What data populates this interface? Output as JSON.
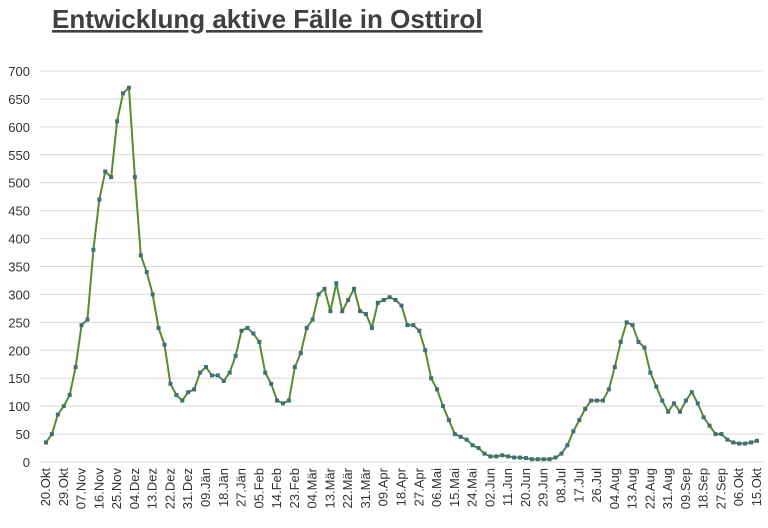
{
  "chart_data": {
    "type": "line",
    "title": "Entwicklung aktive Fälle in Osttirol",
    "categories": [
      "20.Okt",
      null,
      null,
      "29.Okt",
      null,
      null,
      "07.Nov",
      null,
      null,
      "16.Nov",
      null,
      null,
      "25.Nov",
      null,
      null,
      "04.Dez",
      null,
      null,
      "13.Dez",
      null,
      null,
      "22.Dez",
      null,
      null,
      "31.Dez",
      null,
      null,
      "09.Jän",
      null,
      null,
      "18.Jän",
      null,
      null,
      "27.Jän",
      null,
      null,
      "05.Feb",
      null,
      null,
      "14.Feb",
      null,
      null,
      "23.Feb",
      null,
      null,
      "04.Mär",
      null,
      null,
      "13.Mär",
      null,
      null,
      "22.Mär",
      null,
      null,
      "31.Mär",
      null,
      null,
      "09.Apr",
      null,
      null,
      "18.Apr",
      null,
      null,
      "27.Apr",
      null,
      null,
      "06.Mai",
      null,
      null,
      "15.Mai",
      null,
      null,
      "24.Mai",
      null,
      null,
      "02.Jun",
      null,
      null,
      "11.Jun",
      null,
      null,
      "20.Jun",
      null,
      null,
      "29.Jun",
      null,
      null,
      "08.Jul",
      null,
      null,
      "17.Jul",
      null,
      null,
      "26.Jul",
      null,
      null,
      "04.Aug",
      null,
      null,
      "13.Aug",
      null,
      null,
      "22.Aug",
      null,
      null,
      "31.Aug",
      null,
      null,
      "09.Sep",
      null,
      null,
      "18.Sep",
      null,
      null,
      "27.Sep",
      null,
      null,
      "06.Okt",
      null,
      null,
      "15.Okt"
    ],
    "series": [
      {
        "color": "#5a8a30",
        "marker_color": "#3f6f7a",
        "values": [
          35,
          50,
          85,
          100,
          120,
          170,
          245,
          255,
          380,
          470,
          520,
          510,
          610,
          660,
          670,
          510,
          370,
          340,
          300,
          240,
          210,
          140,
          120,
          110,
          125,
          130,
          160,
          170,
          155,
          155,
          145,
          160,
          190,
          235,
          240,
          230,
          215,
          160,
          140,
          110,
          105,
          110,
          170,
          195,
          240,
          255,
          300,
          310,
          270,
          320,
          270,
          290,
          310,
          270,
          265,
          240,
          285,
          290,
          295,
          290,
          280,
          245,
          245,
          235,
          200,
          150,
          130,
          100,
          75,
          50,
          45,
          40,
          30,
          25,
          15,
          10,
          10,
          12,
          10,
          8,
          8,
          7,
          5,
          5,
          5,
          5,
          8,
          15,
          30,
          55,
          75,
          95,
          110,
          110,
          110,
          130,
          170,
          215,
          250,
          245,
          215,
          205,
          160,
          135,
          110,
          90,
          105,
          90,
          110,
          125,
          105,
          80,
          65,
          50,
          50,
          40,
          35,
          33,
          33,
          35,
          38
        ]
      }
    ],
    "ylim": [
      0,
      700
    ],
    "yticks": [
      0,
      50,
      100,
      150,
      200,
      250,
      300,
      350,
      400,
      450,
      500,
      550,
      600,
      650,
      700
    ],
    "grid": true
  }
}
